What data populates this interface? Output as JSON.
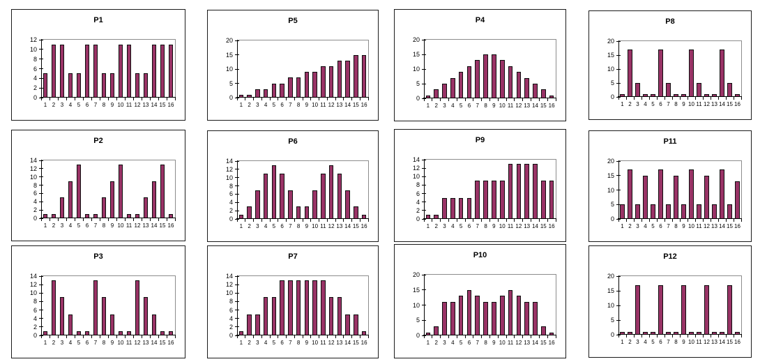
{
  "figure": {
    "description": "Grid of twelve small bar charts labeled P1 to P12",
    "rows": 3,
    "cols": 4
  },
  "colors": {
    "bar_fill": "#993366",
    "bar_border": "#0d0d0d",
    "axis": "#000000",
    "plot_border": "#8c8c8c",
    "panel_border": "#1a1a1a",
    "background": "#ffffff"
  },
  "chart_data": {
    "type": "bar",
    "categories": [
      "1",
      "2",
      "3",
      "4",
      "5",
      "6",
      "7",
      "8",
      "9",
      "10",
      "11",
      "12",
      "13",
      "14",
      "15",
      "16"
    ],
    "legend": "none",
    "grid": "top-line-only",
    "bar_color": "#993366",
    "charts": [
      {
        "title": "P1",
        "ylim": [
          0,
          12
        ],
        "yticks": [
          0,
          2,
          4,
          6,
          8,
          10,
          12
        ],
        "values": [
          5,
          11,
          11,
          5,
          5,
          11,
          11,
          5,
          5,
          11,
          11,
          5,
          5,
          11,
          11,
          11
        ]
      },
      {
        "title": "P5",
        "ylim": [
          0,
          20
        ],
        "yticks": [
          0,
          5,
          10,
          15,
          20
        ],
        "values": [
          1,
          1,
          3,
          3,
          5,
          5,
          7,
          7,
          9,
          9,
          11,
          11,
          13,
          13,
          15,
          15
        ]
      },
      {
        "title": "P4",
        "ylim": [
          0,
          20
        ],
        "yticks": [
          0,
          5,
          10,
          15,
          20
        ],
        "values": [
          1,
          3,
          5,
          7,
          9,
          11,
          13,
          15,
          15,
          13,
          11,
          9,
          7,
          5,
          3,
          1
        ]
      },
      {
        "title": "P8",
        "ylim": [
          0,
          20
        ],
        "yticks": [
          0,
          5,
          10,
          15,
          20
        ],
        "values": [
          1,
          17,
          5,
          1,
          1,
          17,
          5,
          1,
          1,
          17,
          5,
          1,
          1,
          17,
          5,
          1
        ]
      },
      {
        "title": "P2",
        "ylim": [
          0,
          14
        ],
        "yticks": [
          0,
          2,
          4,
          6,
          8,
          10,
          12,
          14
        ],
        "values": [
          1,
          1,
          5,
          9,
          13,
          1,
          1,
          5,
          9,
          13,
          1,
          1,
          5,
          9,
          13,
          1
        ]
      },
      {
        "title": "P6",
        "ylim": [
          0,
          14
        ],
        "yticks": [
          0,
          2,
          4,
          6,
          8,
          10,
          12,
          14
        ],
        "values": [
          1,
          3,
          7,
          11,
          13,
          11,
          7,
          3,
          3,
          7,
          11,
          13,
          11,
          7,
          3,
          1
        ]
      },
      {
        "title": "P9",
        "ylim": [
          0,
          14
        ],
        "yticks": [
          0,
          2,
          4,
          6,
          8,
          10,
          12,
          14
        ],
        "values": [
          1,
          1,
          5,
          5,
          5,
          5,
          9,
          9,
          9,
          9,
          13,
          13,
          13,
          13,
          9,
          9
        ]
      },
      {
        "title": "P11",
        "ylim": [
          0,
          20
        ],
        "yticks": [
          0,
          5,
          10,
          15,
          20
        ],
        "values": [
          5,
          17,
          5,
          15,
          5,
          17,
          5,
          15,
          5,
          17,
          5,
          15,
          5,
          17,
          5,
          13
        ]
      },
      {
        "title": "P3",
        "ylim": [
          0,
          14
        ],
        "yticks": [
          0,
          2,
          4,
          6,
          8,
          10,
          12,
          14
        ],
        "values": [
          1,
          13,
          9,
          5,
          1,
          1,
          13,
          9,
          5,
          1,
          1,
          13,
          9,
          5,
          1,
          1
        ]
      },
      {
        "title": "P7",
        "ylim": [
          0,
          14
        ],
        "yticks": [
          0,
          2,
          4,
          6,
          8,
          10,
          12,
          14
        ],
        "values": [
          1,
          5,
          5,
          9,
          9,
          13,
          13,
          13,
          13,
          13,
          13,
          9,
          9,
          5,
          5,
          1
        ]
      },
      {
        "title": "P10",
        "ylim": [
          0,
          20
        ],
        "yticks": [
          0,
          5,
          10,
          15,
          20
        ],
        "values": [
          1,
          3,
          11,
          11,
          13,
          15,
          13,
          11,
          11,
          13,
          15,
          13,
          11,
          11,
          3,
          1
        ]
      },
      {
        "title": "P12",
        "ylim": [
          0,
          20
        ],
        "yticks": [
          0,
          5,
          10,
          15,
          20
        ],
        "values": [
          1,
          1,
          17,
          1,
          1,
          17,
          1,
          1,
          17,
          1,
          1,
          17,
          1,
          1,
          17,
          1
        ]
      }
    ]
  }
}
